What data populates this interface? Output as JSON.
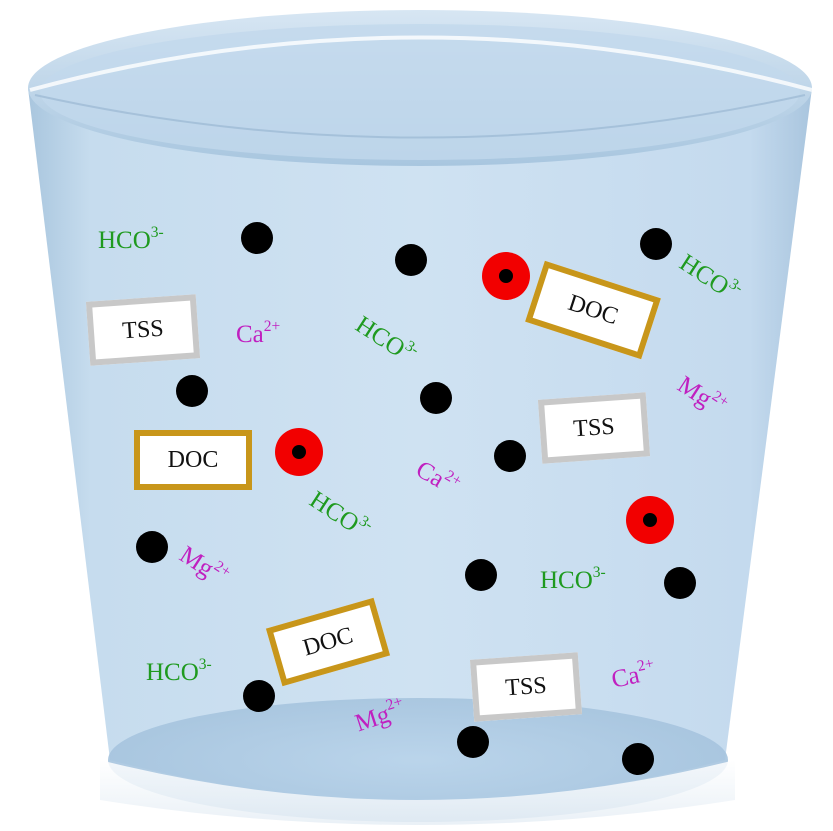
{
  "species": {
    "bicarbonate": {
      "base": "HCO",
      "sup": "3-"
    },
    "calcium": {
      "base": "Ca",
      "sup": "2+"
    },
    "magnesium": {
      "base": "Mg",
      "sup": "2+"
    }
  },
  "boxes": {
    "tss": "TSS",
    "doc": "DOC"
  },
  "colors": {
    "water": "#c8dff0",
    "glass_rim": "#e4eef7",
    "bicarbonate": "#1f9a1f",
    "ions": "#c020c0",
    "tss_border": "#c8c8c8",
    "doc_border": "#c8961a",
    "particle": "#000000",
    "organic_particle": "#f20000"
  }
}
